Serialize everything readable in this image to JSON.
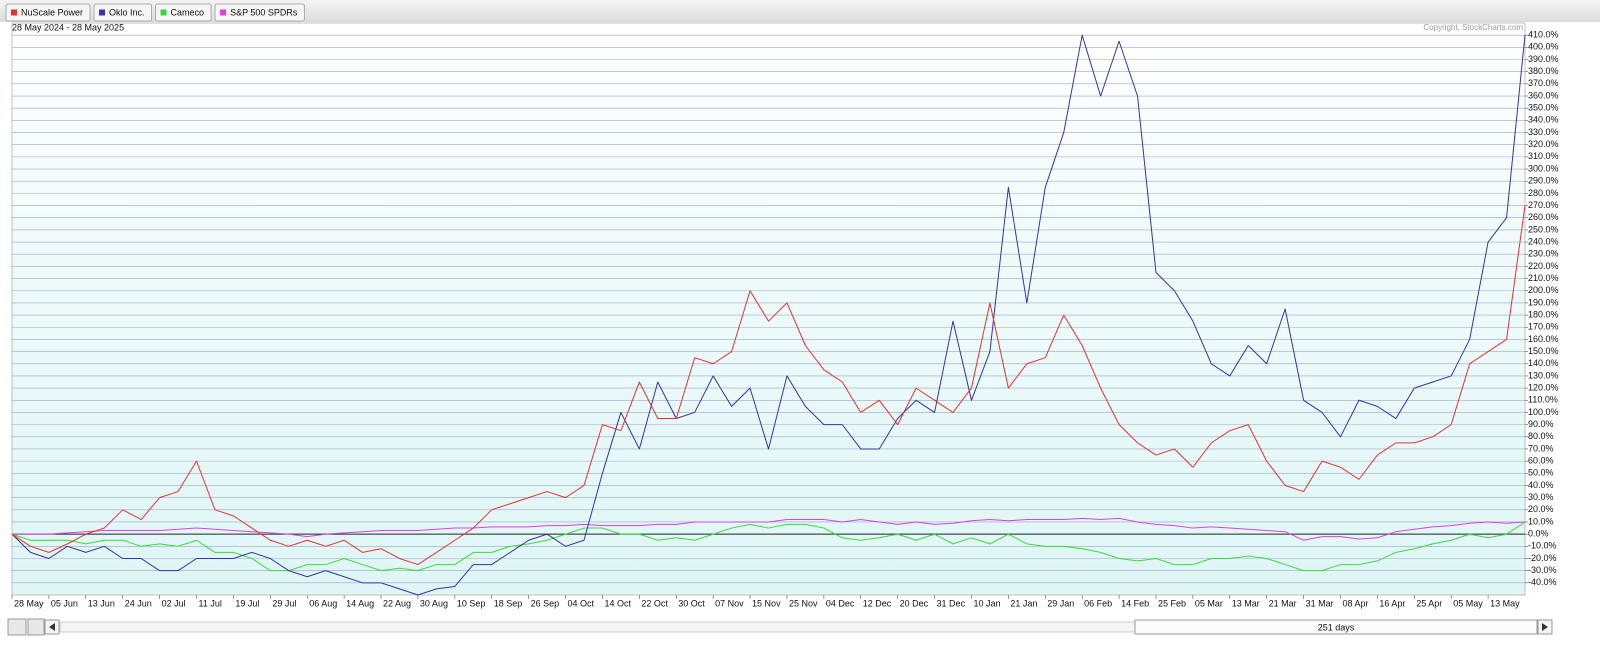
{
  "chart_data": {
    "type": "line",
    "subtitle": "28 May 2024 - 28 May 2025",
    "annotation": "Copyright, StockCharts.com",
    "range_label": "251 days",
    "categories": [
      "28 May",
      null,
      "05 Jun",
      null,
      "13 Jun",
      null,
      "24 Jun",
      null,
      "02 Jul",
      null,
      "11 Jul",
      null,
      "19 Jul",
      null,
      "29 Jul",
      null,
      "06 Aug",
      null,
      "14 Aug",
      null,
      "22 Aug",
      null,
      "30 Aug",
      null,
      "10 Sep",
      null,
      "18 Sep",
      null,
      "26 Sep",
      null,
      "04 Oct",
      null,
      "14 Oct",
      null,
      "22 Oct",
      null,
      "30 Oct",
      null,
      "07 Nov",
      null,
      "15 Nov",
      null,
      "25 Nov",
      null,
      "04 Dec",
      null,
      "12 Dec",
      null,
      "20 Dec",
      null,
      "31 Dec",
      null,
      "10 Jan",
      null,
      "21 Jan",
      null,
      "29 Jan",
      null,
      "06 Feb",
      null,
      "14 Feb",
      null,
      "25 Feb",
      null,
      "05 Mar",
      null,
      "13 Mar",
      null,
      "21 Mar",
      null,
      "31 Mar",
      null,
      "08 Apr",
      null,
      "16 Apr",
      null,
      "25 Apr",
      null,
      "05 May",
      null,
      "13 May",
      null,
      null
    ],
    "series": [
      {
        "name": "NuScale Power",
        "color": "#e8312f",
        "values": [
          0,
          -10,
          -15,
          -8,
          0,
          5,
          20,
          12,
          30,
          35,
          60,
          20,
          15,
          5,
          -5,
          -10,
          -5,
          -10,
          -5,
          -15,
          -12,
          -20,
          -25,
          -15,
          -5,
          5,
          20,
          25,
          30,
          35,
          30,
          40,
          90,
          85,
          125,
          95,
          95,
          145,
          140,
          150,
          200,
          175,
          190,
          155,
          135,
          125,
          100,
          110,
          90,
          120,
          110,
          100,
          120,
          190,
          120,
          140,
          145,
          180,
          155,
          120,
          90,
          75,
          65,
          70,
          55,
          75,
          85,
          90,
          60,
          40,
          35,
          60,
          55,
          45,
          65,
          75,
          75,
          80,
          90,
          140,
          150,
          160,
          270
        ]
      },
      {
        "name": "Oklo Inc.",
        "color": "#3434a8",
        "values": [
          0,
          -15,
          -20,
          -10,
          -15,
          -10,
          -20,
          -20,
          -30,
          -30,
          -20,
          -20,
          -20,
          -15,
          -20,
          -30,
          -35,
          -30,
          -35,
          -40,
          -40,
          -45,
          -50,
          -45,
          -43,
          -25,
          -25,
          -15,
          -5,
          0,
          -10,
          -5,
          50,
          100,
          70,
          125,
          95,
          100,
          130,
          105,
          120,
          70,
          130,
          105,
          90,
          90,
          70,
          70,
          95,
          110,
          100,
          175,
          110,
          150,
          285,
          190,
          285,
          330,
          410,
          360,
          405,
          360,
          215,
          200,
          175,
          140,
          130,
          155,
          140,
          185,
          110,
          100,
          80,
          110,
          105,
          95,
          120,
          125,
          130,
          160,
          240,
          260,
          410
        ]
      },
      {
        "name": "Cameco",
        "color": "#3ed83e",
        "values": [
          0,
          -5,
          -5,
          -5,
          -8,
          -5,
          -5,
          -10,
          -8,
          -10,
          -5,
          -15,
          -15,
          -20,
          -30,
          -30,
          -25,
          -25,
          -20,
          -25,
          -30,
          -28,
          -30,
          -25,
          -25,
          -15,
          -15,
          -10,
          -8,
          -5,
          0,
          5,
          5,
          0,
          0,
          -5,
          -3,
          -5,
          0,
          5,
          8,
          5,
          8,
          8,
          5,
          -3,
          -5,
          -3,
          0,
          -5,
          0,
          -8,
          -3,
          -8,
          0,
          -8,
          -10,
          -10,
          -12,
          -15,
          -20,
          -22,
          -20,
          -25,
          -25,
          -20,
          -20,
          -18,
          -20,
          -25,
          -30,
          -30,
          -25,
          -25,
          -22,
          -15,
          -12,
          -8,
          -5,
          0,
          -3,
          0,
          10
        ]
      },
      {
        "name": "S&P 500 SPDRs",
        "color": "#e03ee0",
        "values": [
          0,
          0,
          0,
          1,
          2,
          3,
          3,
          3,
          3,
          4,
          5,
          4,
          3,
          2,
          1,
          0,
          -2,
          0,
          1,
          2,
          3,
          3,
          3,
          4,
          5,
          5,
          6,
          6,
          6,
          7,
          7,
          8,
          7,
          7,
          7,
          8,
          8,
          10,
          10,
          10,
          10,
          10,
          12,
          12,
          12,
          10,
          12,
          10,
          8,
          10,
          8,
          9,
          11,
          12,
          11,
          12,
          12,
          12,
          13,
          12,
          13,
          10,
          8,
          7,
          5,
          6,
          5,
          4,
          3,
          2,
          -5,
          -2,
          -2,
          -4,
          -3,
          2,
          4,
          6,
          7,
          9,
          10,
          9,
          10
        ]
      }
    ],
    "ylim": [
      -50,
      420
    ],
    "yticks": [
      {
        "value": -40,
        "label": "-40.0%"
      },
      {
        "value": -30,
        "label": "-30.0%"
      },
      {
        "value": -20,
        "label": "-20.0%"
      },
      {
        "value": -10,
        "label": "-10.0%"
      },
      {
        "value": 0,
        "label": "0.0%"
      },
      {
        "value": 10,
        "label": "10.0%"
      },
      {
        "value": 20,
        "label": "20.0%"
      },
      {
        "value": 30,
        "label": "30.0%"
      },
      {
        "value": 40,
        "label": "40.0%"
      },
      {
        "value": 50,
        "label": "50.0%"
      },
      {
        "value": 60,
        "label": "60.0%"
      },
      {
        "value": 70,
        "label": "70.0%"
      },
      {
        "value": 80,
        "label": "80.0%"
      },
      {
        "value": 90,
        "label": "90.0%"
      },
      {
        "value": 100,
        "label": "100.0%"
      },
      {
        "value": 110,
        "label": "110.0%"
      },
      {
        "value": 120,
        "label": "120.0%"
      },
      {
        "value": 130,
        "label": "130.0%"
      },
      {
        "value": 140,
        "label": "140.0%"
      },
      {
        "value": 150,
        "label": "150.0%"
      },
      {
        "value": 160,
        "label": "160.0%"
      },
      {
        "value": 170,
        "label": "170.0%"
      },
      {
        "value": 180,
        "label": "180.0%"
      },
      {
        "value": 190,
        "label": "190.0%"
      },
      {
        "value": 200,
        "label": "200.0%"
      },
      {
        "value": 210,
        "label": "210.0%"
      },
      {
        "value": 220,
        "label": "220.0%"
      },
      {
        "value": 230,
        "label": "230.0%"
      },
      {
        "value": 240,
        "label": "240.0%"
      },
      {
        "value": 250,
        "label": "250.0%"
      },
      {
        "value": 260,
        "label": "260.0%"
      },
      {
        "value": 270,
        "label": "270.0%"
      },
      {
        "value": 280,
        "label": "280.0%"
      },
      {
        "value": 290,
        "label": "290.0%"
      },
      {
        "value": 300,
        "label": "300.0%"
      },
      {
        "value": 310,
        "label": "310.0%"
      },
      {
        "value": 320,
        "label": "320.0%"
      },
      {
        "value": 330,
        "label": "330.0%"
      },
      {
        "value": 340,
        "label": "340.0%"
      },
      {
        "value": 350,
        "label": "350.0%"
      },
      {
        "value": 360,
        "label": "360.0%"
      },
      {
        "value": 370,
        "label": "370.0%"
      },
      {
        "value": 380,
        "label": "380.0%"
      },
      {
        "value": 390,
        "label": "390.0%"
      },
      {
        "value": 400,
        "label": "400.0%"
      },
      {
        "value": 410,
        "label": "410.0%"
      }
    ],
    "grid": true
  }
}
